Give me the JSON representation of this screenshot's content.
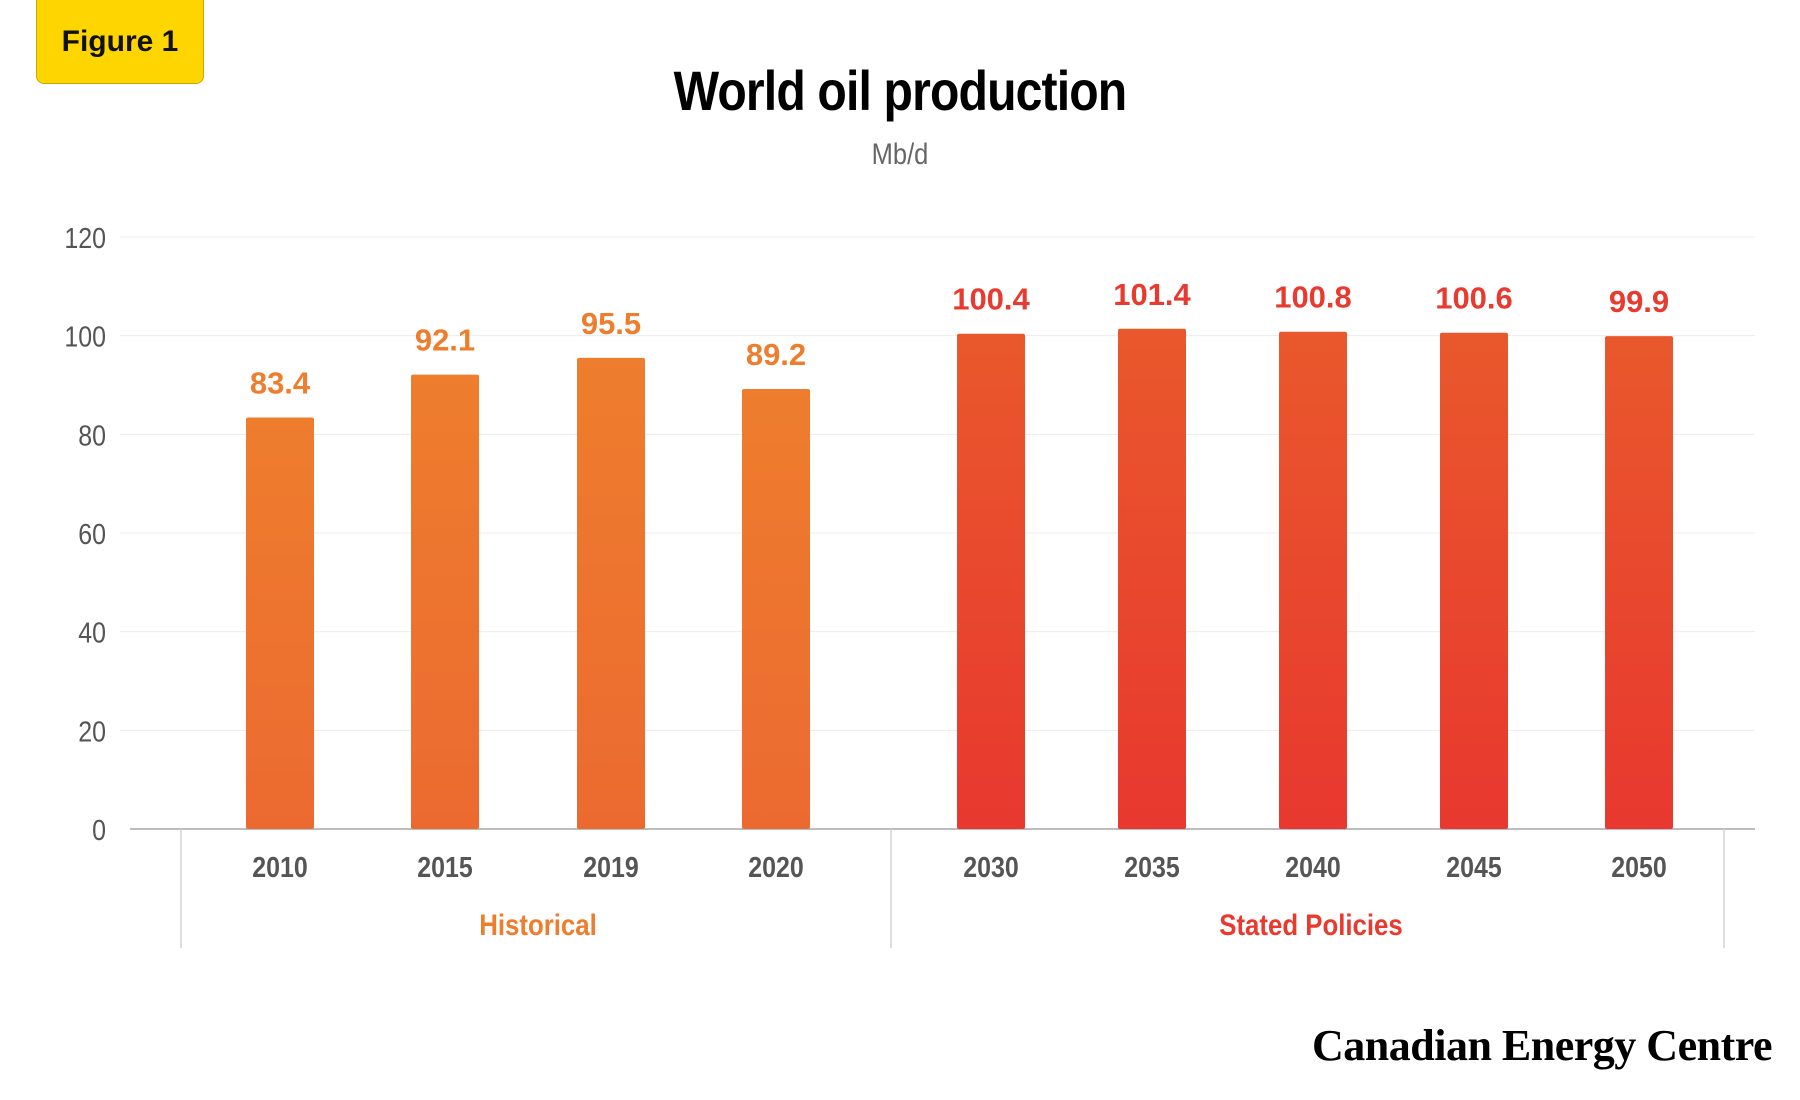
{
  "badge": {
    "label": "Figure 1"
  },
  "chart_data": {
    "type": "bar",
    "title": "World oil production",
    "subtitle": "Mb/d",
    "ylim": [
      0,
      120
    ],
    "yticks": [
      0,
      20,
      40,
      60,
      80,
      100,
      120
    ],
    "grid": true,
    "categories": [
      "2010",
      "2015",
      "2019",
      "2020",
      "2030",
      "2035",
      "2040",
      "2045",
      "2050"
    ],
    "values": [
      83.4,
      92.1,
      95.5,
      89.2,
      100.4,
      101.4,
      100.8,
      100.6,
      99.9
    ],
    "data_labels": [
      "83.4",
      "92.1",
      "95.5",
      "89.2",
      "100.4",
      "101.4",
      "100.8",
      "100.6",
      "99.9"
    ],
    "groups": [
      {
        "name": "Historical",
        "categories": [
          "2010",
          "2015",
          "2019",
          "2020"
        ],
        "color": "#ee7d2e"
      },
      {
        "name": "Stated Policies",
        "categories": [
          "2030",
          "2035",
          "2040",
          "2045",
          "2050"
        ],
        "color": "#e83a2e"
      }
    ],
    "colors": {
      "historical_top": "#ee7d2e",
      "historical_bottom": "#ec6a30",
      "policies_top": "#e9582c",
      "policies_bottom": "#e8382f"
    }
  },
  "footer": {
    "logo_text": "Canadian Energy Centre"
  }
}
